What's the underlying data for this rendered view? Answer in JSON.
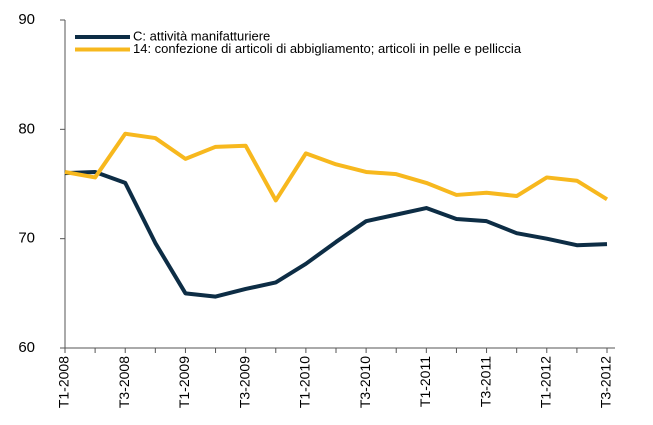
{
  "chart_data": {
    "type": "line",
    "categories": [
      "T1-2008",
      null,
      "T3-2008",
      null,
      "T1-2009",
      null,
      "T3-2009",
      null,
      "T1-2010",
      null,
      "T3-2010",
      null,
      "T1-2011",
      null,
      "T3-2011",
      null,
      "T1-2012",
      null,
      "T3-2012"
    ],
    "series": [
      {
        "name": "C: attività manifatturiere",
        "color": "#0d2d45",
        "values": [
          76.0,
          76.1,
          75.1,
          69.6,
          65.0,
          64.7,
          65.4,
          66.0,
          67.7,
          69.7,
          71.6,
          72.2,
          72.8,
          71.8,
          71.6,
          70.5,
          70.0,
          69.4,
          69.5
        ]
      },
      {
        "name": "14: confezione di articoli di abbigliamento; articoli in pelle e pelliccia",
        "color": "#f7b81e",
        "values": [
          76.1,
          75.6,
          79.6,
          79.2,
          77.3,
          78.4,
          78.5,
          73.5,
          77.8,
          76.8,
          76.1,
          75.9,
          75.1,
          74.0,
          74.2,
          73.9,
          75.6,
          75.3,
          73.6
        ]
      }
    ],
    "ylim": [
      60,
      90
    ],
    "yticks": [
      60,
      70,
      80,
      90
    ],
    "grid": false
  }
}
